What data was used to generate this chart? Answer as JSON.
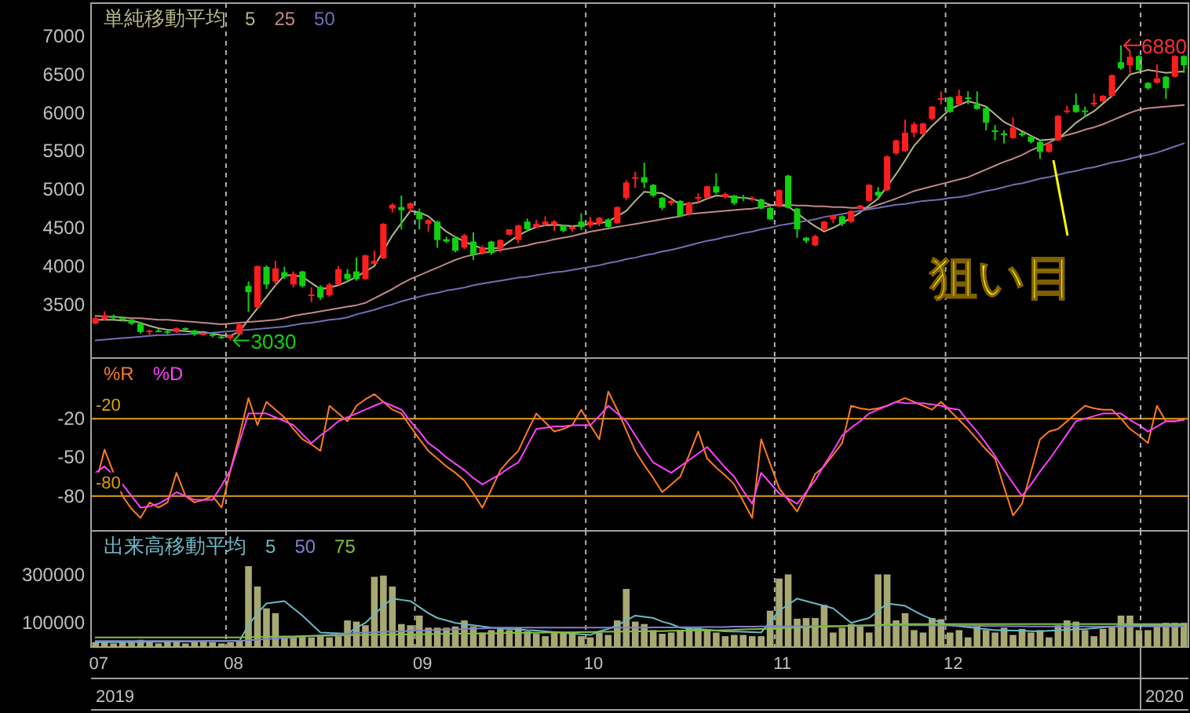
{
  "chart_data": [
    {
      "type": "candlestick",
      "legend_title": "単純移動平均",
      "legend": "top left",
      "grid": "x",
      "tick_labels": "y",
      "categories": [
        "07",
        null,
        null,
        null,
        null,
        null,
        null,
        null,
        null,
        null,
        null,
        null,
        null,
        null,
        null,
        "08",
        null,
        null,
        null,
        null,
        null,
        null,
        null,
        null,
        null,
        null,
        null,
        null,
        null,
        null,
        null,
        null,
        null,
        null,
        null,
        null,
        "09",
        null,
        null,
        null,
        null,
        null,
        null,
        null,
        null,
        null,
        null,
        null,
        null,
        null,
        null,
        null,
        null,
        null,
        null,
        "10",
        null,
        null,
        null,
        null,
        null,
        null,
        null,
        null,
        null,
        null,
        null,
        null,
        null,
        null,
        null,
        null,
        null,
        null,
        null,
        null,
        "11",
        null,
        null,
        null,
        null,
        null,
        null,
        null,
        null,
        null,
        null,
        null,
        null,
        null,
        null,
        null,
        null,
        null,
        null,
        "12",
        null,
        null,
        null,
        null,
        null,
        null,
        null,
        null,
        null,
        null,
        null,
        null,
        null,
        null,
        null,
        null,
        null,
        null,
        null,
        null,
        null,
        null,
        null,
        null,
        null,
        null
      ],
      "ylim": [
        2800,
        7430
      ],
      "yticks": [
        3500,
        4000,
        4500,
        5000,
        5500,
        6000,
        6500,
        7000
      ],
      "ohlc": [
        [
          3250,
          3340,
          3240,
          3320
        ],
        [
          3310,
          3410,
          3290,
          3360
        ],
        [
          3350,
          3370,
          3310,
          3320
        ],
        [
          3320,
          3340,
          3280,
          3300
        ],
        [
          3300,
          3310,
          3230,
          3250
        ],
        [
          3250,
          3270,
          3120,
          3140
        ],
        [
          3140,
          3170,
          3100,
          3160
        ],
        [
          3160,
          3180,
          3140,
          3150
        ],
        [
          3150,
          3160,
          3110,
          3130
        ],
        [
          3140,
          3200,
          3130,
          3190
        ],
        [
          3190,
          3200,
          3160,
          3170
        ],
        [
          3160,
          3170,
          3090,
          3110
        ],
        [
          3110,
          3130,
          3090,
          3120
        ],
        [
          3110,
          3130,
          3070,
          3090
        ],
        [
          3080,
          3100,
          3050,
          3070
        ],
        [
          3060,
          3110,
          3030,
          3100
        ],
        [
          3110,
          3260,
          3100,
          3240
        ],
        [
          3740,
          3800,
          3400,
          3660
        ],
        [
          3460,
          4010,
          3450,
          4000
        ],
        [
          3990,
          4010,
          3700,
          3760
        ],
        [
          3800,
          4070,
          3750,
          3970
        ],
        [
          3920,
          3990,
          3830,
          3860
        ],
        [
          3760,
          3930,
          3720,
          3900
        ],
        [
          3930,
          3940,
          3720,
          3740
        ],
        [
          3610,
          3720,
          3530,
          3630
        ],
        [
          3730,
          3750,
          3560,
          3590
        ],
        [
          3620,
          3780,
          3600,
          3760
        ],
        [
          3760,
          4000,
          3750,
          3960
        ],
        [
          3900,
          3960,
          3800,
          3830
        ],
        [
          3930,
          4110,
          3810,
          3830
        ],
        [
          3830,
          4150,
          3820,
          4140
        ],
        [
          4030,
          4200,
          4020,
          4070
        ],
        [
          4100,
          4560,
          4090,
          4550
        ],
        [
          4750,
          4820,
          4700,
          4800
        ],
        [
          4770,
          4920,
          4480,
          4730
        ],
        [
          4750,
          4830,
          4700,
          4820
        ],
        [
          4700,
          4750,
          4480,
          4610
        ],
        [
          4550,
          4610,
          4450,
          4600
        ],
        [
          4580,
          4590,
          4240,
          4340
        ],
        [
          4350,
          4380,
          4300,
          4320
        ],
        [
          4370,
          4390,
          4180,
          4200
        ],
        [
          4240,
          4420,
          4220,
          4400
        ],
        [
          4320,
          4440,
          4080,
          4150
        ],
        [
          4170,
          4270,
          4150,
          4240
        ],
        [
          4320,
          4330,
          4150,
          4170
        ],
        [
          4230,
          4350,
          4180,
          4340
        ],
        [
          4410,
          4480,
          4400,
          4480
        ],
        [
          4340,
          4540,
          4300,
          4530
        ],
        [
          4580,
          4620,
          4460,
          4480
        ],
        [
          4510,
          4600,
          4500,
          4550
        ],
        [
          4540,
          4650,
          4520,
          4580
        ],
        [
          4540,
          4600,
          4460,
          4580
        ],
        [
          4530,
          4540,
          4440,
          4460
        ],
        [
          4480,
          4530,
          4450,
          4510
        ],
        [
          4580,
          4690,
          4470,
          4510
        ],
        [
          4530,
          4640,
          4500,
          4580
        ],
        [
          4550,
          4640,
          4520,
          4630
        ],
        [
          4610,
          4620,
          4490,
          4510
        ],
        [
          4560,
          4780,
          4550,
          4770
        ],
        [
          4890,
          5120,
          4860,
          5090
        ],
        [
          5140,
          5230,
          5020,
          5160
        ],
        [
          5160,
          5350,
          5020,
          5090
        ],
        [
          5060,
          5070,
          4900,
          4920
        ],
        [
          4890,
          4900,
          4730,
          4760
        ],
        [
          4820,
          4860,
          4790,
          4850
        ],
        [
          4850,
          4860,
          4640,
          4650
        ],
        [
          4680,
          4840,
          4660,
          4830
        ],
        [
          4880,
          4950,
          4830,
          4900
        ],
        [
          4890,
          5050,
          4880,
          5040
        ],
        [
          5040,
          5210,
          4940,
          4960
        ],
        [
          4900,
          4960,
          4880,
          4940
        ],
        [
          4920,
          4930,
          4800,
          4820
        ],
        [
          4900,
          4930,
          4850,
          4880
        ],
        [
          4860,
          4910,
          4850,
          4880
        ],
        [
          4870,
          4880,
          4740,
          4750
        ],
        [
          4760,
          4770,
          4600,
          4610
        ],
        [
          4780,
          5000,
          4770,
          4990
        ],
        [
          5180,
          5190,
          4750,
          4760
        ],
        [
          4750,
          4760,
          4370,
          4480
        ],
        [
          4370,
          4380,
          4300,
          4330
        ],
        [
          4270,
          4410,
          4260,
          4390
        ],
        [
          4480,
          4590,
          4460,
          4580
        ],
        [
          4610,
          4670,
          4560,
          4660
        ],
        [
          4650,
          4660,
          4520,
          4550
        ],
        [
          4580,
          4730,
          4560,
          4720
        ],
        [
          4750,
          4800,
          4740,
          4790
        ],
        [
          4850,
          5070,
          4840,
          5060
        ],
        [
          4970,
          5030,
          4880,
          4920
        ],
        [
          4990,
          5440,
          4980,
          5430
        ],
        [
          5470,
          5650,
          5450,
          5640
        ],
        [
          5500,
          5910,
          5490,
          5740
        ],
        [
          5740,
          5880,
          5680,
          5850
        ],
        [
          5720,
          5870,
          5710,
          5860
        ],
        [
          5920,
          6090,
          5900,
          6080
        ],
        [
          6170,
          6280,
          6110,
          6190
        ],
        [
          6200,
          6210,
          6000,
          6010
        ],
        [
          6110,
          6300,
          6090,
          6220
        ],
        [
          6200,
          6280,
          6110,
          6180
        ],
        [
          6110,
          6280,
          6040,
          6050
        ],
        [
          6060,
          6070,
          5770,
          5870
        ],
        [
          5770,
          5840,
          5640,
          5750
        ],
        [
          5730,
          5770,
          5600,
          5710
        ],
        [
          5670,
          5940,
          5660,
          5810
        ],
        [
          5730,
          5750,
          5690,
          5710
        ],
        [
          5690,
          5700,
          5600,
          5620
        ],
        [
          5620,
          5650,
          5400,
          5490
        ],
        [
          5490,
          5610,
          5480,
          5600
        ],
        [
          5640,
          5970,
          5630,
          5960
        ],
        [
          6010,
          6090,
          5990,
          6030
        ],
        [
          6100,
          6250,
          6000,
          6010
        ],
        [
          6030,
          6080,
          5940,
          6010
        ],
        [
          6110,
          6250,
          6080,
          6130
        ],
        [
          6150,
          6230,
          6140,
          6220
        ],
        [
          6220,
          6500,
          6210,
          6490
        ],
        [
          6660,
          6880,
          6560,
          6580
        ],
        [
          6620,
          6800,
          6520,
          6730
        ],
        [
          6740,
          6750,
          6550,
          6560
        ],
        [
          6390,
          6400,
          6300,
          6320
        ],
        [
          6390,
          6630,
          6380,
          6450
        ],
        [
          6470,
          6480,
          6180,
          6320
        ],
        [
          6470,
          6750,
          6460,
          6740
        ],
        [
          6740,
          6750,
          6520,
          6620
        ]
      ],
      "series": [
        {
          "type": "line",
          "name": "5",
          "color": "#b4b48a",
          "values": [
            3300,
            3300,
            3300,
            3290,
            3290,
            3260,
            3220,
            3190,
            3170,
            3160,
            3150,
            3140,
            3140,
            3120,
            3100,
            3090,
            3150,
            3300,
            3450,
            3600,
            3750,
            3880,
            3880,
            3860,
            3780,
            3700,
            3720,
            3750,
            3800,
            3860,
            3930,
            4000,
            4200,
            4400,
            4560,
            4720,
            4700,
            4650,
            4550,
            4450,
            4380,
            4320,
            4270,
            4230,
            4230,
            4240,
            4320,
            4400,
            4460,
            4510,
            4530,
            4540,
            4530,
            4520,
            4530,
            4550,
            4560,
            4580,
            4650,
            4720,
            4850,
            4970,
            4960,
            4950,
            4880,
            4800,
            4810,
            4830,
            4880,
            4920,
            4910,
            4900,
            4890,
            4880,
            4840,
            4800,
            4790,
            4780,
            4690,
            4600,
            4520,
            4450,
            4500,
            4560,
            4630,
            4700,
            4790,
            4880,
            5040,
            5200,
            5380,
            5570,
            5700,
            5830,
            5940,
            6050,
            6100,
            6150,
            6120,
            6080,
            5980,
            5880,
            5820,
            5760,
            5700,
            5640,
            5650,
            5660,
            5760,
            5870,
            5950,
            6020,
            6120,
            6220,
            6360,
            6500,
            6530,
            6560,
            6540,
            6520,
            6530,
            6540
          ]
        },
        {
          "type": "line",
          "name": "25",
          "color": "#c08888",
          "values": [
            3350,
            3340,
            3340,
            3330,
            3320,
            3320,
            3310,
            3300,
            3300,
            3290,
            3280,
            3270,
            3260,
            3250,
            3240,
            3250,
            3260,
            3270,
            3280,
            3290,
            3300,
            3320,
            3350,
            3370,
            3390,
            3410,
            3430,
            3450,
            3470,
            3490,
            3520,
            3580,
            3640,
            3700,
            3770,
            3830,
            3880,
            3930,
            3980,
            4030,
            4080,
            4120,
            4150,
            4170,
            4190,
            4210,
            4230,
            4250,
            4270,
            4300,
            4320,
            4350,
            4370,
            4390,
            4420,
            4450,
            4470,
            4490,
            4510,
            4530,
            4550,
            4570,
            4590,
            4610,
            4630,
            4650,
            4680,
            4690,
            4700,
            4710,
            4720,
            4730,
            4740,
            4750,
            4770,
            4790,
            4800,
            4800,
            4790,
            4790,
            4780,
            4780,
            4770,
            4770,
            4760,
            4760,
            4760,
            4800,
            4840,
            4880,
            4930,
            4980,
            5010,
            5040,
            5070,
            5100,
            5130,
            5160,
            5210,
            5260,
            5310,
            5360,
            5400,
            5450,
            5510,
            5560,
            5610,
            5670,
            5710,
            5740,
            5780,
            5810,
            5850,
            5900,
            5950,
            6000,
            6040,
            6060,
            6070,
            6080,
            6090,
            6100
          ]
        },
        {
          "type": "line",
          "name": "50",
          "color": "#7070b4",
          "values": [
            3030,
            3040,
            3050,
            3060,
            3070,
            3080,
            3090,
            3100,
            3100,
            3110,
            3110,
            3120,
            3120,
            3130,
            3140,
            3150,
            3160,
            3170,
            3180,
            3190,
            3200,
            3210,
            3230,
            3250,
            3260,
            3280,
            3300,
            3310,
            3330,
            3370,
            3400,
            3430,
            3470,
            3500,
            3540,
            3570,
            3600,
            3630,
            3650,
            3680,
            3700,
            3720,
            3750,
            3770,
            3790,
            3810,
            3830,
            3850,
            3860,
            3880,
            3900,
            3920,
            3930,
            3950,
            3970,
            3990,
            4010,
            4040,
            4060,
            4090,
            4110,
            4140,
            4160,
            4190,
            4210,
            4240,
            4270,
            4300,
            4330,
            4350,
            4380,
            4400,
            4430,
            4450,
            4480,
            4500,
            4530,
            4550,
            4570,
            4590,
            4610,
            4640,
            4660,
            4680,
            4700,
            4720,
            4740,
            4760,
            4780,
            4800,
            4810,
            4830,
            4850,
            4860,
            4870,
            4890,
            4900,
            4920,
            4950,
            4980,
            5000,
            5030,
            5060,
            5080,
            5110,
            5140,
            5160,
            5190,
            5220,
            5240,
            5270,
            5290,
            5320,
            5350,
            5370,
            5400,
            5430,
            5450,
            5480,
            5520,
            5560,
            5600
          ]
        }
      ],
      "annotations": [
        "3030",
        "6880",
        "狙い目"
      ]
    },
    {
      "type": "line",
      "legend": "top left",
      "grid": "x",
      "tick_labels": "y",
      "categories": [
        "07",
        null,
        null,
        null,
        null,
        null,
        null,
        null,
        null,
        null,
        null,
        null,
        null,
        null,
        null,
        "08",
        null,
        null,
        null,
        null,
        null,
        null,
        null,
        null,
        null,
        null,
        null,
        null,
        null,
        null,
        null,
        null,
        null,
        null,
        null,
        null,
        "09",
        null,
        null,
        null,
        null,
        null,
        null,
        null,
        null,
        null,
        null,
        null,
        null,
        null,
        null,
        null,
        null,
        null,
        null,
        "10",
        null,
        null,
        null,
        null,
        null,
        null,
        null,
        null,
        null,
        null,
        null,
        null,
        null,
        null,
        null,
        null,
        null,
        null,
        null,
        null,
        "11",
        null,
        null,
        null,
        null,
        null,
        null,
        null,
        null,
        null,
        null,
        null,
        null,
        null,
        null,
        null,
        null,
        null,
        null,
        "12",
        null,
        null,
        null,
        null,
        null,
        null,
        null,
        null,
        null,
        null,
        null,
        null,
        null,
        null,
        null,
        null,
        null,
        null,
        null,
        null,
        null,
        null,
        null,
        null,
        null,
        null
      ],
      "ylim": [
        -107,
        27
      ],
      "yticks": [
        -20,
        -50,
        -80
      ],
      "ref_lines": [
        {
          "axis": "y",
          "value": -20,
          "label": "-20",
          "color": "#e0a010"
        },
        {
          "axis": "y",
          "value": -80,
          "label": "-80",
          "color": "#e0a010"
        }
      ],
      "series": [
        {
          "name": "%R",
          "color": "#ff7a20",
          "values": [
            -71,
            -44,
            -62,
            -80,
            -90,
            -97,
            -85,
            -89,
            -85,
            -62,
            -80,
            -85,
            -83,
            -80,
            -89,
            -60,
            -33,
            -4,
            -25,
            -7,
            -13,
            -19,
            -28,
            -36,
            -40,
            -45,
            -10,
            -16,
            -22,
            -10,
            -5,
            -1,
            -7,
            -13,
            -16,
            -26,
            -36,
            -45,
            -51,
            -57,
            -62,
            -68,
            -78,
            -89,
            -75,
            -60,
            -52,
            -45,
            -30,
            -16,
            -23,
            -30,
            -28,
            -25,
            -13,
            -25,
            -36,
            1,
            -13,
            -29,
            -45,
            -56,
            -66,
            -77,
            -71,
            -65,
            -48,
            -30,
            -51,
            -58,
            -64,
            -71,
            -84,
            -97,
            -36,
            -55,
            -74,
            -83,
            -92,
            -78,
            -63,
            -57,
            -48,
            -39,
            -10,
            -12,
            -13,
            -12,
            -10,
            -7,
            -4,
            -7,
            -10,
            -13,
            -7,
            -14,
            -21,
            -28,
            -36,
            -44,
            -51,
            -73,
            -95,
            -86,
            -61,
            -36,
            -30,
            -28,
            -22,
            -16,
            -10,
            -12,
            -13,
            -13,
            -20,
            -28,
            -33,
            -39,
            -10,
            -22,
            -22,
            -20
          ]
        },
        {
          "name": "%D",
          "color": "#ff40ff",
          "values": [
            -62,
            -57,
            -64,
            -71,
            -80,
            -89,
            -88,
            -86,
            -82,
            -77,
            -80,
            -83,
            -83,
            -83,
            -72,
            -60,
            -38,
            -16,
            -16,
            -16,
            -19,
            -22,
            -25,
            -32,
            -39,
            -33,
            -28,
            -22,
            -19,
            -16,
            -13,
            -10,
            -7,
            -10,
            -13,
            -22,
            -30,
            -39,
            -44,
            -50,
            -55,
            -60,
            -66,
            -71,
            -67,
            -63,
            -58,
            -54,
            -41,
            -28,
            -27,
            -26,
            -26,
            -25,
            -25,
            -25,
            -18,
            -10,
            -16,
            -22,
            -33,
            -44,
            -54,
            -58,
            -62,
            -57,
            -52,
            -47,
            -42,
            -50,
            -58,
            -65,
            -76,
            -86,
            -62,
            -70,
            -78,
            -82,
            -86,
            -77,
            -68,
            -56,
            -45,
            -33,
            -27,
            -22,
            -16,
            -13,
            -10,
            -7,
            -8,
            -8,
            -8,
            -9,
            -10,
            -12,
            -13,
            -22,
            -30,
            -39,
            -49,
            -60,
            -70,
            -80,
            -71,
            -61,
            -52,
            -42,
            -32,
            -22,
            -20,
            -18,
            -16,
            -16,
            -16,
            -21,
            -25,
            -30,
            -26,
            -22,
            -22,
            -21
          ]
        }
      ]
    },
    {
      "type": "bar",
      "legend_title": "出来高移動平均",
      "legend": "top left",
      "grid": "x",
      "categories": [
        "07",
        null,
        null,
        null,
        null,
        null,
        null,
        null,
        null,
        null,
        null,
        null,
        null,
        null,
        null,
        "08",
        null,
        null,
        null,
        null,
        null,
        null,
        null,
        null,
        null,
        null,
        null,
        null,
        null,
        null,
        null,
        null,
        null,
        null,
        null,
        null,
        "09",
        null,
        null,
        null,
        null,
        null,
        null,
        null,
        null,
        null,
        null,
        null,
        null,
        null,
        null,
        null,
        null,
        null,
        null,
        "10",
        null,
        null,
        null,
        null,
        null,
        null,
        null,
        null,
        null,
        null,
        null,
        null,
        null,
        null,
        null,
        null,
        null,
        null,
        null,
        null,
        "11",
        null,
        null,
        null,
        null,
        null,
        null,
        null,
        null,
        null,
        null,
        null,
        null,
        null,
        null,
        null,
        null,
        null,
        null,
        "12",
        null,
        null,
        null,
        null,
        null,
        null,
        null,
        null,
        null,
        null,
        null,
        null,
        null,
        null,
        null,
        null,
        null,
        null,
        null,
        null,
        null,
        null,
        null,
        null,
        null,
        null
      ],
      "ylim": [
        0,
        480000
      ],
      "yticks": [
        100000,
        300000
      ],
      "series": [
        {
          "type": "bar",
          "color": "#a8a872",
          "values": [
            20000,
            25000,
            15000,
            20000,
            25000,
            30000,
            20000,
            15000,
            25000,
            20000,
            15000,
            20000,
            25000,
            20000,
            15000,
            20000,
            25000,
            334000,
            250000,
            160000,
            140000,
            45000,
            40000,
            45000,
            40000,
            45000,
            40000,
            45000,
            110000,
            105000,
            90000,
            290000,
            295000,
            250000,
            95000,
            90000,
            130000,
            80000,
            80000,
            80000,
            85000,
            110000,
            85000,
            60000,
            70000,
            75000,
            70000,
            80000,
            65000,
            55000,
            45000,
            65000,
            60000,
            55000,
            45000,
            40000,
            60000,
            50000,
            110000,
            240000,
            105000,
            95000,
            70000,
            55000,
            60000,
            70000,
            75000,
            80000,
            70000,
            60000,
            45000,
            50000,
            50000,
            45000,
            45000,
            150000,
            283000,
            300000,
            117000,
            120000,
            120000,
            174000,
            60000,
            80000,
            95000,
            85000,
            60000,
            300000,
            300000,
            110000,
            140000,
            70000,
            60000,
            120000,
            115000,
            60000,
            70000,
            40000,
            85000,
            70000,
            60000,
            80000,
            50000,
            75000,
            60000,
            70000,
            40000,
            90000,
            110000,
            105000,
            70000,
            45000,
            75000,
            85000,
            130000,
            130000,
            70000,
            70000,
            85000,
            100000,
            100000,
            100000
          ]
        },
        {
          "type": "line",
          "name": "5",
          "color": "#6cb8c4",
          "values": [
            20000,
            20000,
            20000,
            20000,
            21000,
            21000,
            22000,
            22000,
            22000,
            23000,
            23000,
            23000,
            24000,
            24000,
            24000,
            25000,
            25000,
            90000,
            140000,
            180000,
            185000,
            190000,
            160000,
            130000,
            95000,
            60000,
            58000,
            57000,
            55000,
            80000,
            100000,
            135000,
            170000,
            200000,
            195000,
            190000,
            165000,
            140000,
            120000,
            110000,
            100000,
            95000,
            90000,
            85000,
            80000,
            78000,
            75000,
            73000,
            70000,
            68000,
            65000,
            62000,
            59000,
            56000,
            53000,
            50000,
            65000,
            75000,
            90000,
            110000,
            130000,
            125000,
            120000,
            105000,
            95000,
            80000,
            77000,
            74000,
            71000,
            68000,
            65000,
            64000,
            63000,
            62000,
            60000,
            105000,
            150000,
            175000,
            200000,
            190000,
            180000,
            170000,
            160000,
            130000,
            100000,
            110000,
            120000,
            150000,
            180000,
            175000,
            170000,
            150000,
            130000,
            115000,
            100000,
            90000,
            86000,
            82000,
            78000,
            74000,
            70000,
            69000,
            68000,
            67000,
            66000,
            65000,
            67000,
            69000,
            71000,
            73000,
            75000,
            78000,
            81000,
            84000,
            87000,
            90000,
            90000,
            90000,
            90000,
            90000,
            90000,
            90000
          ]
        },
        {
          "type": "line",
          "name": "50",
          "color": "#8080d0",
          "values": [
            25000,
            25000,
            25000,
            25000,
            25000,
            25000,
            25000,
            25000,
            25000,
            25000,
            25000,
            25000,
            25000,
            25000,
            25000,
            25000,
            25000,
            28000,
            30000,
            33000,
            35000,
            38000,
            40000,
            43000,
            45000,
            48000,
            50000,
            53000,
            55000,
            58000,
            60000,
            61000,
            63000,
            64000,
            65000,
            67000,
            68000,
            69000,
            71000,
            72000,
            73000,
            75000,
            76000,
            77000,
            79000,
            80000,
            80000,
            80000,
            80000,
            80000,
            80000,
            80000,
            80000,
            80000,
            80000,
            80000,
            80000,
            80000,
            80000,
            80000,
            80000,
            80000,
            81000,
            81000,
            81000,
            82000,
            82000,
            82000,
            83000,
            83000,
            83000,
            84000,
            84000,
            84000,
            85000,
            85000,
            85000,
            85000,
            86000,
            86000,
            86000,
            87000,
            87000,
            87000,
            88000,
            88000,
            88000,
            89000,
            89000,
            89000,
            90000,
            90000,
            90000,
            89000,
            89000,
            89000,
            88000,
            88000,
            88000,
            87000,
            87000,
            87000,
            86000,
            86000,
            85000,
            85000,
            85000,
            85000,
            85000,
            85000,
            85000,
            85000,
            85000,
            85000,
            85000,
            85000,
            85000,
            85000,
            85000,
            85000,
            85000,
            85000
          ]
        },
        {
          "type": "line",
          "name": "75",
          "color": "#80c040",
          "values": [
            40000,
            40000,
            40000,
            40000,
            40000,
            40000,
            40000,
            40000,
            40000,
            40000,
            40000,
            40000,
            40000,
            40000,
            40000,
            40000,
            40000,
            41000,
            41000,
            42000,
            43000,
            44000,
            44000,
            45000,
            46000,
            47000,
            47000,
            48000,
            49000,
            49000,
            50000,
            50000,
            51000,
            51000,
            52000,
            52000,
            53000,
            53000,
            54000,
            54000,
            55000,
            55000,
            56000,
            56000,
            57000,
            57000,
            58000,
            58000,
            59000,
            59000,
            60000,
            60000,
            61000,
            61000,
            62000,
            62000,
            63000,
            63000,
            64000,
            64000,
            65000,
            65000,
            66000,
            66000,
            67000,
            67000,
            68000,
            68000,
            69000,
            69000,
            70000,
            71000,
            73000,
            74000,
            75000,
            76000,
            78000,
            79000,
            80000,
            81000,
            83000,
            84000,
            85000,
            86000,
            88000,
            89000,
            90000,
            91000,
            93000,
            94000,
            95000,
            95000,
            95000,
            95000,
            95000,
            95000,
            95000,
            95000,
            95000,
            95000,
            95000,
            95000,
            95000,
            95000,
            95000,
            95000,
            95000,
            95000,
            95000,
            95000,
            95000,
            95000,
            95000,
            95000,
            95000,
            95000,
            95000,
            95000,
            95000,
            95000,
            95000,
            95000
          ]
        }
      ],
      "annotations": [
        "2019",
        "2020"
      ]
    }
  ]
}
